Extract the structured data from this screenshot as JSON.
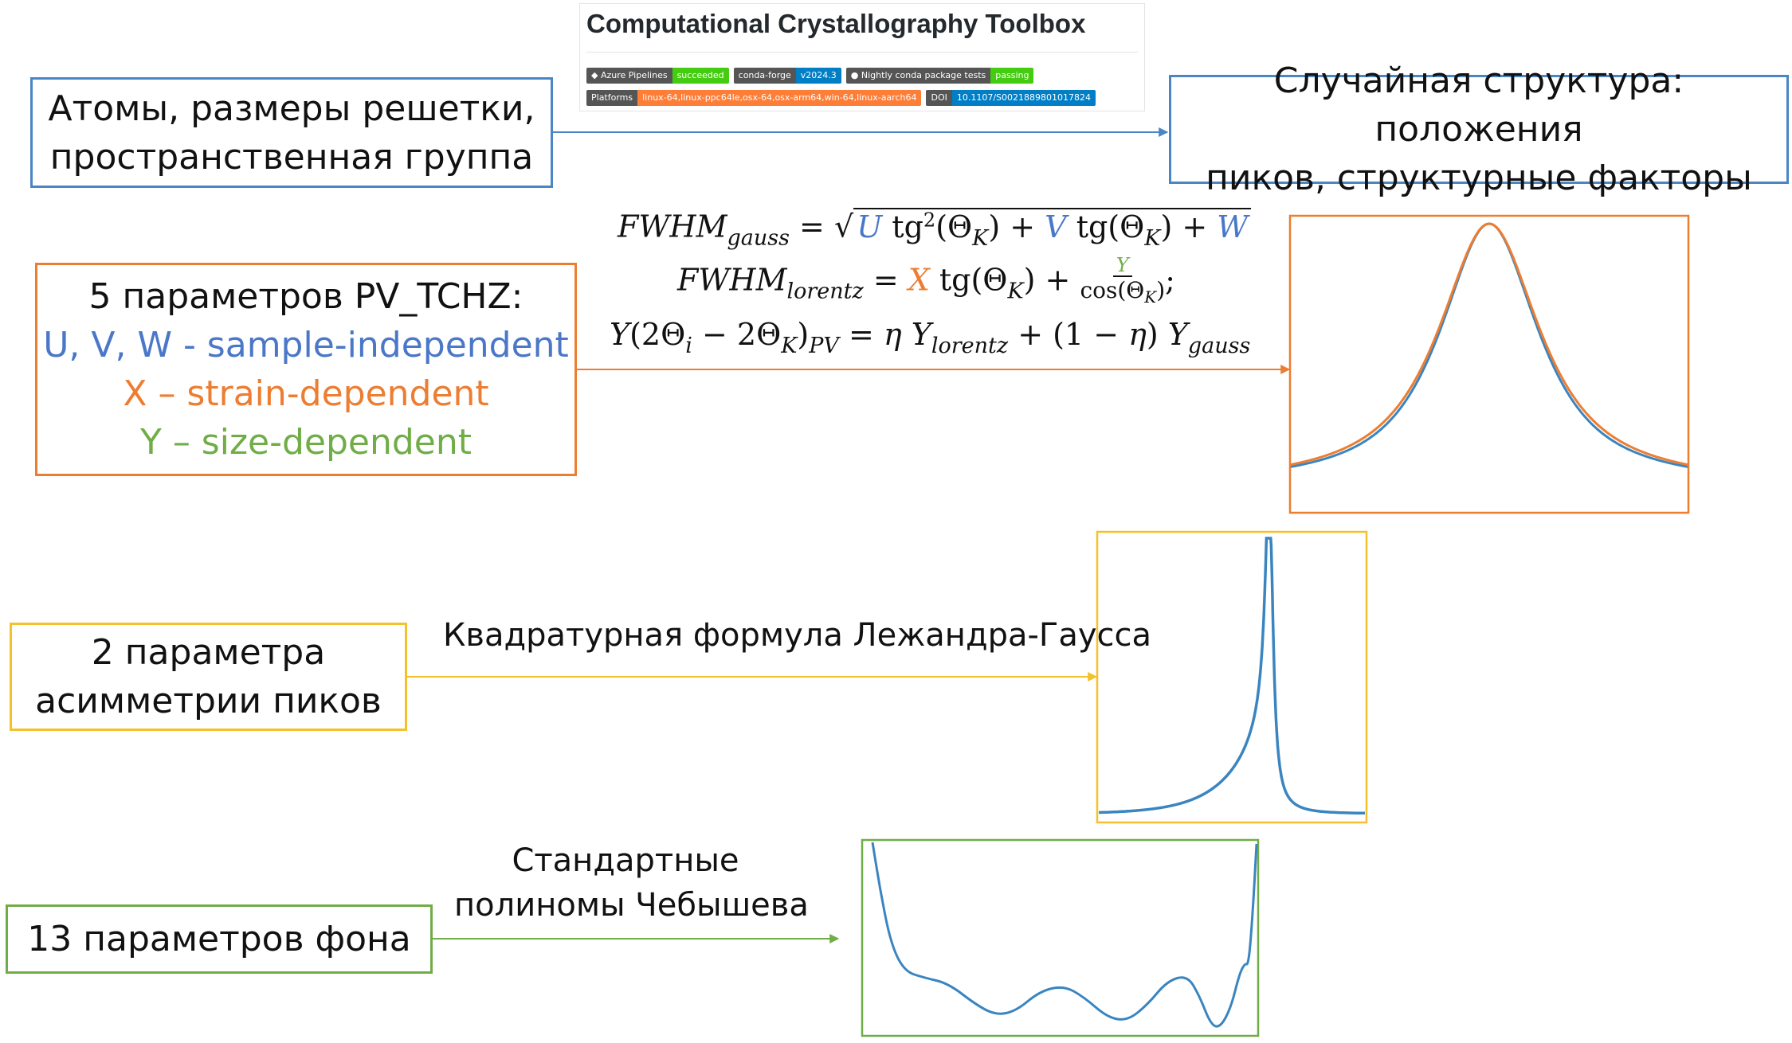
{
  "toolbox": {
    "title": "Computational Crystallography Toolbox",
    "badges_row1": [
      {
        "left": "Azure Pipelines",
        "right": "succeeded",
        "color": "#4c1"
      },
      {
        "left": "conda-forge",
        "right": "v2024.3",
        "color": "#007ec6"
      },
      {
        "left": "Nightly conda package tests",
        "right": "passing",
        "color": "#4c1"
      }
    ],
    "badges_row2": [
      {
        "left": "Platforms",
        "right": "linux-64,linux-ppc64le,osx-64,osx-arm64,win-64,linux-aarch64",
        "color": "#fe7d37"
      },
      {
        "left": "DOI",
        "right": "10.1107/S0021889801017824",
        "color": "#007ec6"
      }
    ]
  },
  "boxes": {
    "atoms": {
      "line1": "Атомы, размеры решетки,",
      "line2": "пространственная группа"
    },
    "random": {
      "line1": "Случайная структура: положения",
      "line2": "пиков, структурные факторы"
    },
    "pv": {
      "title": "5 параметров PV_TCHZ:",
      "uvw": "U, V, W - sample-independent",
      "x": "X – strain-dependent",
      "y": "Y – size-dependent"
    },
    "asym": {
      "line1": "2 параметра",
      "line2": "асимметрии пиков"
    },
    "bg": {
      "line1": "13 параметров фона"
    }
  },
  "labels": {
    "legendre": "Квадратурная формула Лежандра-Гаусса",
    "cheb1": "Стандартные",
    "cheb2": "полиномы Чебышева"
  },
  "colors": {
    "blue_box": "#4a86c5",
    "orange_box": "#ed7d31",
    "yellow_box": "#f4c12b",
    "green_box": "#70ad47",
    "curve_blue": "#3a85c0",
    "curve_orange": "#ed7d31"
  }
}
